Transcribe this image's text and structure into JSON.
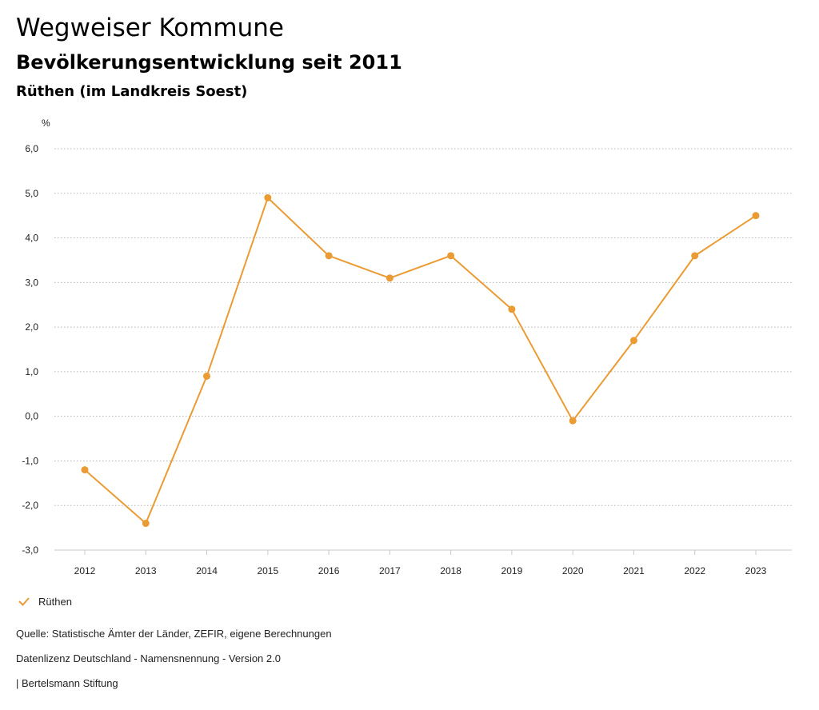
{
  "header": {
    "title": "Wegweiser Kommune",
    "subtitle": "Bevölkerungsentwicklung seit 2011",
    "region": "Rüthen (im Landkreis Soest)"
  },
  "chart_data": {
    "type": "line",
    "ylabel": "%",
    "xlabel": "",
    "ylim": [
      -3.0,
      6.0
    ],
    "yticks": [
      "6,0",
      "5,0",
      "4,0",
      "3,0",
      "2,0",
      "1,0",
      "0,0",
      "-1,0",
      "-2,0",
      "-3,0"
    ],
    "categories": [
      "2012",
      "2013",
      "2014",
      "2015",
      "2016",
      "2017",
      "2018",
      "2019",
      "2020",
      "2021",
      "2022",
      "2023"
    ],
    "series": [
      {
        "name": "Rüthen",
        "color": "#eb9b33",
        "values": [
          -1.2,
          -2.4,
          0.9,
          4.9,
          3.6,
          3.1,
          3.6,
          2.4,
          -0.1,
          1.7,
          3.6,
          4.5
        ]
      }
    ],
    "grid": true,
    "legend": "bottom-left"
  },
  "legend": {
    "label": "Rüthen",
    "icon": "check-icon"
  },
  "footer": {
    "source": "Quelle: Statistische Ämter der Länder, ZEFIR, eigene Berechnungen",
    "license": "Datenlizenz Deutschland - Namensnennung - Version 2.0",
    "brand": "| Bertelsmann Stiftung"
  }
}
